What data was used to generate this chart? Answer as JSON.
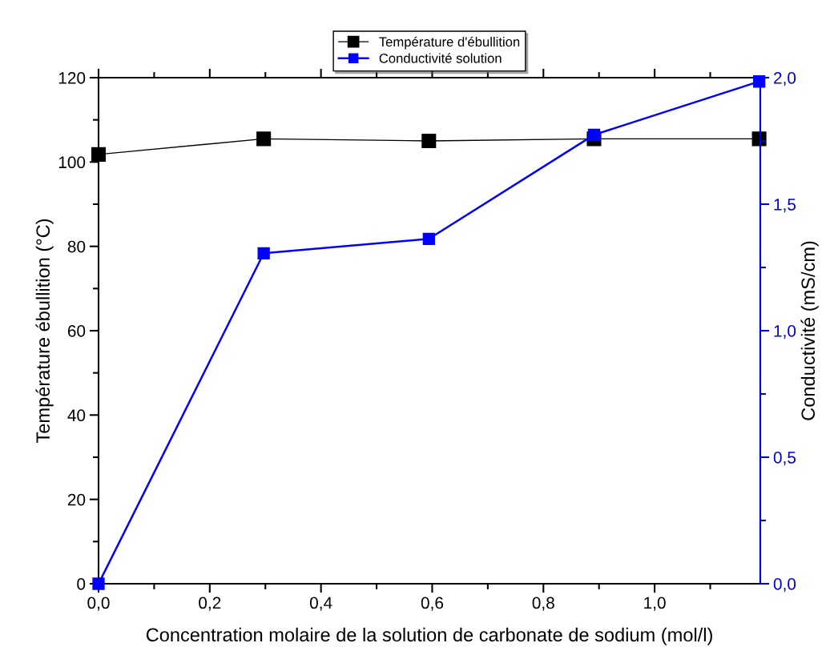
{
  "chart_data": {
    "type": "line",
    "xlabel": "Concentration molaire de la solution de carbonate de sodium (mol/l)",
    "ylabel": "Température ébullition (°C)",
    "y2label": "Conductivité (mS/cm)",
    "x": [
      0,
      0.297,
      0.594,
      0.891,
      1.188
    ],
    "series": [
      {
        "name": "Température d'ébullition",
        "color": "#000000",
        "values": [
          101.8,
          105.5,
          105.0,
          105.5,
          105.5
        ]
      },
      {
        "name": "Conductivité solution",
        "color": "#0000ff",
        "axis": "y2",
        "values": [
          0.0,
          1.306,
          1.363,
          1.774,
          1.985
        ]
      }
    ],
    "xlim": [
      0,
      1.19
    ],
    "xticks": [
      {
        "value": 0,
        "label": "0,0"
      },
      {
        "value": 0.2,
        "label": "0,2"
      },
      {
        "value": 0.4,
        "label": "0,4"
      },
      {
        "value": 0.6,
        "label": "0,6"
      },
      {
        "value": 0.8,
        "label": "0,8"
      },
      {
        "value": 1.0,
        "label": "1,0"
      }
    ],
    "ylim": [
      0,
      120
    ],
    "yticks": [
      0,
      20,
      40,
      60,
      80,
      100,
      120
    ],
    "y2lim": [
      0,
      2.0
    ],
    "y2ticks": [
      {
        "value": 0,
        "label": "0,0"
      },
      {
        "value": 0.5,
        "label": "0,5"
      },
      {
        "value": 1.0,
        "label": "1,0"
      },
      {
        "value": 1.5,
        "label": "1,5"
      },
      {
        "value": 2.0,
        "label": "2,0"
      }
    ],
    "marker": "square",
    "line_style": "solid",
    "legend": "top",
    "grid": false
  }
}
